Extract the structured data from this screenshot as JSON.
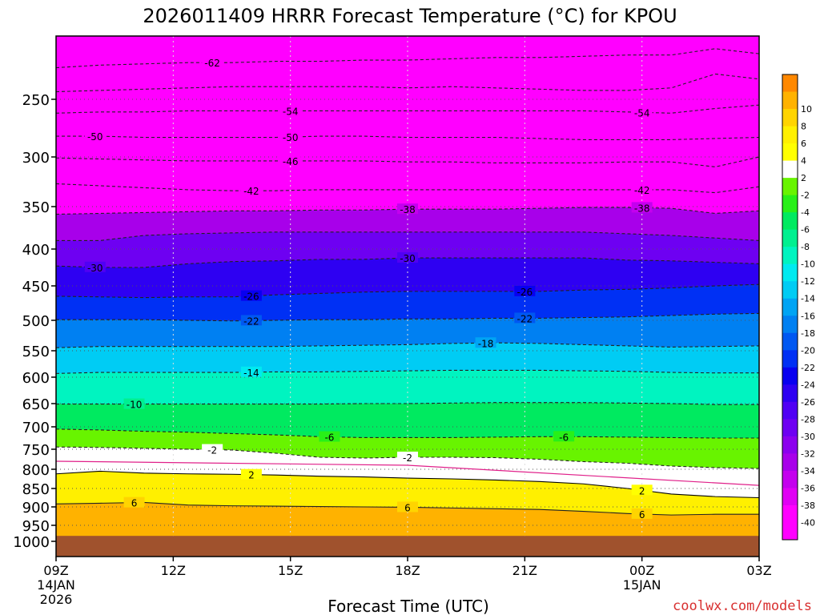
{
  "chart_data": {
    "type": "heatmap",
    "title": "2026011409 HRRR Forecast Temperature (°C) for KPOU",
    "xlabel": "Forecast Time (UTC)",
    "ylabel": "",
    "credit": "coolwx.com/models",
    "x_range_hours": [
      9,
      27
    ],
    "y_range_hpa": [
      200,
      1040
    ],
    "x_ticks": [
      {
        "hour": 9,
        "label": "09Z",
        "sub1": "14JAN",
        "sub2": "2026"
      },
      {
        "hour": 12,
        "label": "12Z",
        "sub1": "",
        "sub2": ""
      },
      {
        "hour": 15,
        "label": "15Z",
        "sub1": "",
        "sub2": ""
      },
      {
        "hour": 18,
        "label": "18Z",
        "sub1": "",
        "sub2": ""
      },
      {
        "hour": 21,
        "label": "21Z",
        "sub1": "",
        "sub2": ""
      },
      {
        "hour": 24,
        "label": "00Z",
        "sub1": "15JAN",
        "sub2": ""
      },
      {
        "hour": 27,
        "label": "03Z",
        "sub1": "",
        "sub2": ""
      }
    ],
    "y_ticks": [
      {
        "p": 250,
        "label": "250"
      },
      {
        "p": 300,
        "label": "300"
      },
      {
        "p": 350,
        "label": "350"
      },
      {
        "p": 400,
        "label": "400"
      },
      {
        "p": 450,
        "label": "450"
      },
      {
        "p": 500,
        "label": "500"
      },
      {
        "p": 550,
        "label": "550"
      },
      {
        "p": 600,
        "label": "600"
      },
      {
        "p": 650,
        "label": "650"
      },
      {
        "p": 700,
        "label": "700"
      },
      {
        "p": 750,
        "label": "750"
      },
      {
        "p": 800,
        "label": "800"
      },
      {
        "p": 850,
        "label": "850"
      },
      {
        "p": 900,
        "label": "900"
      },
      {
        "p": 950,
        "label": "950"
      },
      {
        "p": 1000,
        "label": "1000"
      }
    ],
    "surface_pressure_hpa": 983,
    "colorbar": [
      {
        "label": "",
        "color": "#ff00ff"
      },
      {
        "label": "-40",
        "color": "#ff00ff"
      },
      {
        "label": "-38",
        "color": "#e000f4"
      },
      {
        "label": "-36",
        "color": "#c400ee"
      },
      {
        "label": "-34",
        "color": "#a800ea"
      },
      {
        "label": "-32",
        "color": "#8c00ee"
      },
      {
        "label": "-30",
        "color": "#6e00f2"
      },
      {
        "label": "-28",
        "color": "#5000f4"
      },
      {
        "label": "-26",
        "color": "#2e00f2"
      },
      {
        "label": "-24",
        "color": "#0800f0"
      },
      {
        "label": "-22",
        "color": "#0030f4"
      },
      {
        "label": "-20",
        "color": "#0058f2"
      },
      {
        "label": "-18",
        "color": "#0080f2"
      },
      {
        "label": "-16",
        "color": "#00a4f4"
      },
      {
        "label": "-14",
        "color": "#00ccf4"
      },
      {
        "label": "-12",
        "color": "#00eaf0"
      },
      {
        "label": "-10",
        "color": "#00f4c0"
      },
      {
        "label": "-8",
        "color": "#00f090"
      },
      {
        "label": "-6",
        "color": "#00ea60"
      },
      {
        "label": "-4",
        "color": "#28f018"
      },
      {
        "label": "-2",
        "color": "#68f400"
      },
      {
        "label": "2",
        "color": "#ffffff"
      },
      {
        "label": "4",
        "color": "#ffff00"
      },
      {
        "label": "6",
        "color": "#fff000"
      },
      {
        "label": "8",
        "color": "#ffd400"
      },
      {
        "label": "10",
        "color": "#ffb200"
      },
      {
        "label": "",
        "color": "#ff8800"
      }
    ],
    "isotherms": [
      {
        "temp": -62,
        "label": "-62",
        "p": [
          225,
          223,
          222,
          221,
          221,
          220,
          220,
          219,
          219,
          218,
          217,
          217,
          216,
          215,
          215,
          210,
          214
        ],
        "labels_at": [
          13
        ]
      },
      {
        "temp": -58,
        "label": "",
        "p": [
          244,
          243,
          242,
          241,
          240,
          240,
          240,
          240,
          241,
          240,
          241,
          242,
          243,
          243,
          241,
          230,
          234
        ],
        "labels_at": []
      },
      {
        "temp": -54,
        "label": "-54",
        "p": [
          262,
          261,
          261,
          260,
          260,
          260,
          260,
          260,
          260,
          260,
          260,
          260,
          260,
          261,
          262,
          258,
          255
        ],
        "labels_at": [
          15,
          24
        ]
      },
      {
        "temp": -50,
        "label": "-50",
        "p": [
          282,
          282,
          283,
          283,
          283,
          283,
          282,
          282,
          283,
          283,
          283,
          284,
          285,
          285,
          285,
          284,
          283
        ],
        "labels_at": [
          10,
          15
        ]
      },
      {
        "temp": -46,
        "label": "-46",
        "p": [
          301,
          302,
          303,
          304,
          304,
          304,
          304,
          304,
          305,
          305,
          306,
          306,
          306,
          305,
          305,
          310,
          300
        ],
        "labels_at": [
          15
        ]
      },
      {
        "temp": -42,
        "label": "-42",
        "p": [
          327,
          329,
          331,
          333,
          334,
          334,
          333,
          333,
          333,
          333,
          333,
          333,
          333,
          333,
          333,
          336,
          330
        ],
        "labels_at": [
          14,
          24
        ]
      },
      {
        "temp": -38,
        "label": "-38",
        "p": [
          359,
          358,
          357,
          356,
          355,
          355,
          354,
          354,
          353,
          353,
          353,
          352,
          351,
          351,
          352,
          358,
          355
        ],
        "labels_at": [
          18,
          24
        ]
      },
      {
        "temp": -34,
        "label": "",
        "p": [
          390,
          390,
          384,
          382,
          381,
          380,
          380,
          380,
          380,
          380,
          380,
          380,
          380,
          382,
          384,
          387,
          390
        ],
        "labels_at": []
      },
      {
        "temp": -30,
        "label": "-30",
        "p": [
          423,
          425,
          425,
          420,
          417,
          416,
          414,
          414,
          412,
          412,
          412,
          412,
          412,
          415,
          416,
          418,
          420
        ],
        "labels_at": [
          10,
          18
        ]
      },
      {
        "temp": -26,
        "label": "-26",
        "p": [
          465,
          466,
          467,
          466,
          466,
          463,
          461,
          459,
          458,
          458,
          458,
          458,
          456,
          455,
          453,
          450,
          448
        ],
        "labels_at": [
          14,
          21
        ]
      },
      {
        "temp": -22,
        "label": "-22",
        "p": [
          499,
          499,
          499,
          500,
          501,
          500,
          499,
          499,
          498,
          498,
          497,
          497,
          496,
          495,
          493,
          491,
          490
        ],
        "labels_at": [
          14,
          21
        ]
      },
      {
        "temp": -18,
        "label": "-18",
        "p": [
          545,
          543,
          543,
          543,
          543,
          543,
          542,
          541,
          540,
          538,
          537,
          538,
          540,
          542,
          544,
          543,
          542
        ],
        "labels_at": [
          20
        ]
      },
      {
        "temp": -14,
        "label": "-14",
        "p": [
          593,
          591,
          591,
          591,
          591,
          590,
          590,
          589,
          588,
          587,
          587,
          587,
          588,
          589,
          591,
          592,
          592
        ],
        "labels_at": [
          14
        ]
      },
      {
        "temp": -10,
        "label": "-10",
        "p": [
          651,
          651,
          651,
          651,
          651,
          651,
          651,
          650,
          650,
          649,
          648,
          648,
          648,
          649,
          650,
          652,
          652
        ],
        "labels_at": [
          11
        ]
      },
      {
        "temp": -6,
        "label": "-6",
        "p": [
          705,
          707,
          710,
          712,
          715,
          718,
          722,
          724,
          724,
          724,
          723,
          722,
          722,
          723,
          724,
          725,
          725
        ],
        "labels_at": [
          16,
          22
        ]
      },
      {
        "temp": -2,
        "label": "-2",
        "p": [
          745,
          746,
          748,
          750,
          752,
          760,
          770,
          772,
          770,
          770,
          771,
          775,
          781,
          785,
          792,
          796,
          798
        ],
        "labels_at": [
          13,
          18
        ]
      },
      {
        "temp": 2,
        "label": "2",
        "p": [
          812,
          805,
          810,
          812,
          813,
          815,
          818,
          820,
          823,
          825,
          828,
          832,
          838,
          850,
          865,
          872,
          875
        ],
        "labels_at": [
          14,
          24
        ]
      },
      {
        "temp": 6,
        "label": "6",
        "p": [
          892,
          890,
          888,
          895,
          897,
          898,
          899,
          900,
          901,
          903,
          905,
          907,
          912,
          918,
          922,
          920,
          920
        ],
        "labels_at": [
          11,
          18,
          24
        ]
      }
    ]
  }
}
